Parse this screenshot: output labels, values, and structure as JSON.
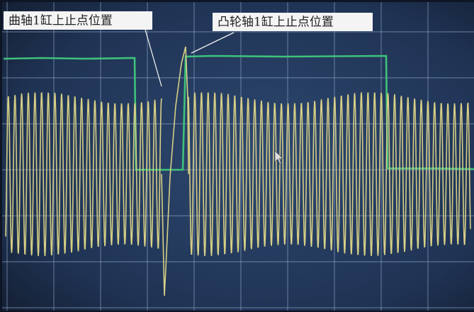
{
  "annotations": [
    {
      "label": "曲轴1缸上止点位置"
    },
    {
      "label": "凸轮轴1缸上止点位置"
    }
  ]
}
